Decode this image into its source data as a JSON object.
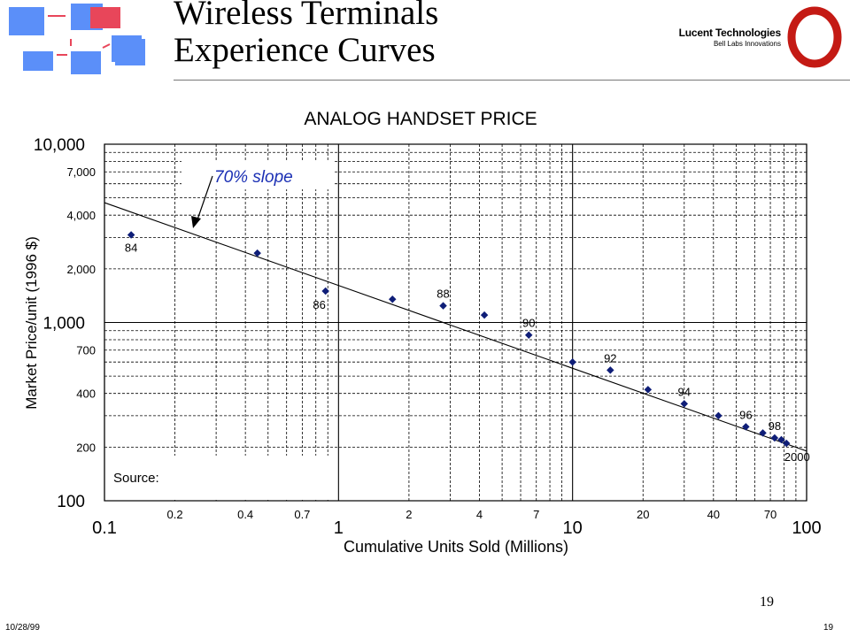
{
  "slide": {
    "title_line1": "Wireless Terminals",
    "title_line2": "Experience Curves",
    "logo_name": "Lucent Technologies",
    "logo_tagline": "Bell Labs Innovations",
    "page_number": "19",
    "footer_date": "10/28/99",
    "footer_page": "19"
  },
  "colors": {
    "marker": "#0f1e78",
    "trend": "#000000",
    "slope_label": "#1a2fb4",
    "deco_box": "#5b8ff9",
    "deco_box_accent": "#e8465a",
    "deco_arrow": "#e8465a",
    "logo_ring": "#c41a14"
  },
  "chart_data": {
    "type": "scatter",
    "title": "ANALOG HANDSET PRICE",
    "xlabel": "Cumulative Units Sold (Millions)",
    "ylabel": "Market Price/unit (1996 $)",
    "x_scale": "log",
    "y_scale": "log",
    "xlim": [
      0.1,
      100
    ],
    "ylim": [
      100,
      10000
    ],
    "x_major_ticks": [
      {
        "value": 0.1,
        "label": "0.1"
      },
      {
        "value": 1,
        "label": "1"
      },
      {
        "value": 10,
        "label": "10"
      },
      {
        "value": 100,
        "label": "100"
      }
    ],
    "x_minor_ticks": [
      {
        "value": 0.2,
        "label": "0.2"
      },
      {
        "value": 0.4,
        "label": "0.4"
      },
      {
        "value": 0.7,
        "label": "0.7"
      },
      {
        "value": 2,
        "label": "2"
      },
      {
        "value": 4,
        "label": "4"
      },
      {
        "value": 7,
        "label": "7"
      },
      {
        "value": 20,
        "label": "20"
      },
      {
        "value": 40,
        "label": "40"
      },
      {
        "value": 70,
        "label": "70"
      }
    ],
    "y_major_ticks": [
      {
        "value": 10000,
        "label": "10,000"
      },
      {
        "value": 1000,
        "label": "1,000"
      },
      {
        "value": 100,
        "label": "100"
      }
    ],
    "y_minor_ticks": [
      {
        "value": 7000,
        "label": "7,000"
      },
      {
        "value": 4000,
        "label": "4,000"
      },
      {
        "value": 2000,
        "label": "2,000"
      },
      {
        "value": 700,
        "label": "700"
      },
      {
        "value": 400,
        "label": "400"
      },
      {
        "value": 200,
        "label": "200"
      }
    ],
    "grid": true,
    "points": [
      {
        "x": 0.13,
        "y": 3100,
        "label": "84"
      },
      {
        "x": 0.45,
        "y": 2450,
        "label": ""
      },
      {
        "x": 0.88,
        "y": 1500,
        "label": "86"
      },
      {
        "x": 1.7,
        "y": 1350,
        "label": ""
      },
      {
        "x": 2.8,
        "y": 1240,
        "label": "88"
      },
      {
        "x": 4.2,
        "y": 1100,
        "label": ""
      },
      {
        "x": 6.5,
        "y": 850,
        "label": "90"
      },
      {
        "x": 10,
        "y": 600,
        "label": ""
      },
      {
        "x": 14.5,
        "y": 540,
        "label": "92"
      },
      {
        "x": 21,
        "y": 420,
        "label": ""
      },
      {
        "x": 30,
        "y": 350,
        "label": "94"
      },
      {
        "x": 42,
        "y": 300,
        "label": ""
      },
      {
        "x": 55,
        "y": 260,
        "label": "96"
      },
      {
        "x": 65,
        "y": 240,
        "label": ""
      },
      {
        "x": 73,
        "y": 225,
        "label": "98"
      },
      {
        "x": 78,
        "y": 220,
        "label": ""
      },
      {
        "x": 82,
        "y": 210,
        "label": "2000"
      }
    ],
    "trend_line": {
      "x": [
        0.1,
        100
      ],
      "y": [
        4700,
        190
      ]
    },
    "annotations": {
      "slope": "70% slope",
      "source": "Source:"
    }
  }
}
